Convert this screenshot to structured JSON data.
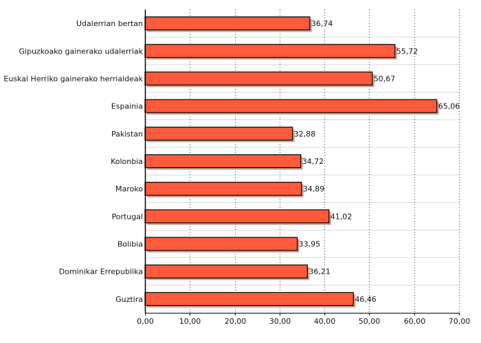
{
  "chart_data": {
    "type": "bar",
    "orientation": "horizontal",
    "categories": [
      "Udalerrian bertan",
      "Gipuzkoako gainerako udalerriak",
      "Euskal Herriko gainerako herrialdeak",
      "Espainia",
      "Pakistan",
      "Kolonbia",
      "Maroko",
      "Portugal",
      "Bolibia",
      "Dominikar Errepublika",
      "Guztira"
    ],
    "values": [
      36.74,
      55.72,
      50.67,
      65.06,
      32.88,
      34.72,
      34.89,
      41.02,
      33.95,
      36.21,
      46.46
    ],
    "value_labels": [
      "36,74",
      "55,72",
      "50,67",
      "65,06",
      "32,88",
      "34,72",
      "34,89",
      "41,02",
      "33,95",
      "36,21",
      "46,46"
    ],
    "xlim": [
      0,
      70
    ],
    "xticks": [
      0,
      10,
      20,
      30,
      40,
      50,
      60,
      70
    ],
    "xtick_labels": [
      "0,00",
      "10,00",
      "20,00",
      "30,00",
      "40,00",
      "50,00",
      "60,00",
      "70,00"
    ],
    "title": "",
    "xlabel": "",
    "ylabel": "",
    "grid": "vertical dotted",
    "bar_color": "#ff5a3c",
    "bar_edge_color": "#000000",
    "shadow_color": "#c4a79a"
  }
}
